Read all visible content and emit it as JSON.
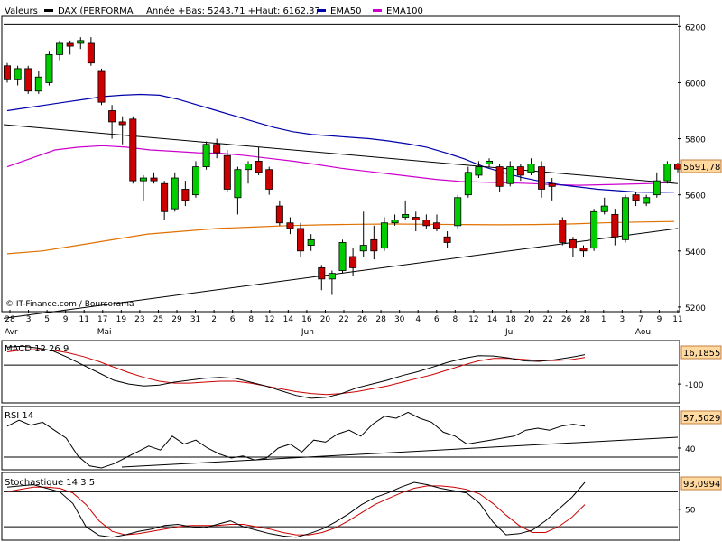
{
  "header": {
    "valeurs_label": "Valeurs",
    "instrument": "DAX (PERFORMA",
    "range_text": "Année +Bas: 5243,71 +Haut: 6162,37",
    "legend": [
      {
        "name": "EMA50",
        "color": "#0000aa"
      },
      {
        "name": "EMA100",
        "color": "#cc00cc"
      }
    ]
  },
  "watermark": "© IT-Finance.com / Boursorama",
  "colors": {
    "up_candle": "#00cc00",
    "down_candle": "#cc0000",
    "ema50": "#0000aa",
    "ema100": "#cc00cc",
    "ema200": "#e07000",
    "trendline": "#000000",
    "signal": "#cc0000",
    "lastvalue_box": "#ffd9a0"
  },
  "x_axis": {
    "day_labels": [
      "28",
      "3",
      "5",
      "9",
      "11",
      "17",
      "19",
      "23",
      "25",
      "29",
      "31",
      "2",
      "6",
      "8",
      "12",
      "14",
      "16",
      "20",
      "22",
      "26",
      "28",
      "30",
      "4",
      "6",
      "8",
      "12",
      "14",
      "18",
      "20",
      "22",
      "26",
      "28",
      "1",
      "3",
      "7",
      "9",
      "11"
    ],
    "month_labels": [
      "Avr",
      "Mai",
      "Jun",
      "Jul",
      "Aou"
    ]
  },
  "chart_data": [
    {
      "type": "candlestick",
      "name": "DAX (PERFORMA",
      "y_ticks": [
        6200,
        6000,
        5800,
        5600,
        5400,
        5200
      ],
      "ylim": [
        5190,
        6230
      ],
      "last_value": "5691,78",
      "candles": [
        {
          "o": 6060,
          "h": 6070,
          "l": 6000,
          "c": 6010
        },
        {
          "o": 6010,
          "h": 6060,
          "l": 5990,
          "c": 6050
        },
        {
          "o": 6050,
          "h": 6060,
          "l": 5960,
          "c": 5970
        },
        {
          "o": 5970,
          "h": 6040,
          "l": 5960,
          "c": 6020
        },
        {
          "o": 6000,
          "h": 6110,
          "l": 5990,
          "c": 6100
        },
        {
          "o": 6100,
          "h": 6150,
          "l": 6080,
          "c": 6140
        },
        {
          "o": 6140,
          "h": 6150,
          "l": 6100,
          "c": 6130
        },
        {
          "o": 6140,
          "h": 6162,
          "l": 6120,
          "c": 6150
        },
        {
          "o": 6140,
          "h": 6162,
          "l": 6060,
          "c": 6070
        },
        {
          "o": 6040,
          "h": 6050,
          "l": 5920,
          "c": 5930
        },
        {
          "o": 5900,
          "h": 5920,
          "l": 5800,
          "c": 5860
        },
        {
          "o": 5860,
          "h": 5880,
          "l": 5780,
          "c": 5850
        },
        {
          "o": 5870,
          "h": 5880,
          "l": 5640,
          "c": 5650
        },
        {
          "o": 5650,
          "h": 5670,
          "l": 5580,
          "c": 5660
        },
        {
          "o": 5660,
          "h": 5680,
          "l": 5640,
          "c": 5650
        },
        {
          "o": 5640,
          "h": 5650,
          "l": 5510,
          "c": 5540
        },
        {
          "o": 5550,
          "h": 5680,
          "l": 5540,
          "c": 5660
        },
        {
          "o": 5620,
          "h": 5650,
          "l": 5560,
          "c": 5580
        },
        {
          "o": 5600,
          "h": 5720,
          "l": 5590,
          "c": 5700
        },
        {
          "o": 5700,
          "h": 5790,
          "l": 5690,
          "c": 5780
        },
        {
          "o": 5780,
          "h": 5800,
          "l": 5730,
          "c": 5750
        },
        {
          "o": 5740,
          "h": 5760,
          "l": 5610,
          "c": 5620
        },
        {
          "o": 5590,
          "h": 5700,
          "l": 5530,
          "c": 5690
        },
        {
          "o": 5690,
          "h": 5720,
          "l": 5640,
          "c": 5710
        },
        {
          "o": 5720,
          "h": 5770,
          "l": 5670,
          "c": 5680
        },
        {
          "o": 5690,
          "h": 5700,
          "l": 5600,
          "c": 5620
        },
        {
          "o": 5560,
          "h": 5580,
          "l": 5490,
          "c": 5500
        },
        {
          "o": 5500,
          "h": 5520,
          "l": 5460,
          "c": 5480
        },
        {
          "o": 5480,
          "h": 5500,
          "l": 5380,
          "c": 5400
        },
        {
          "o": 5420,
          "h": 5460,
          "l": 5400,
          "c": 5440
        },
        {
          "o": 5340,
          "h": 5350,
          "l": 5260,
          "c": 5300
        },
        {
          "o": 5300,
          "h": 5330,
          "l": 5243,
          "c": 5320
        },
        {
          "o": 5330,
          "h": 5440,
          "l": 5320,
          "c": 5430
        },
        {
          "o": 5380,
          "h": 5410,
          "l": 5310,
          "c": 5340
        },
        {
          "o": 5400,
          "h": 5540,
          "l": 5380,
          "c": 5420
        },
        {
          "o": 5440,
          "h": 5490,
          "l": 5370,
          "c": 5400
        },
        {
          "o": 5410,
          "h": 5520,
          "l": 5400,
          "c": 5500
        },
        {
          "o": 5500,
          "h": 5530,
          "l": 5490,
          "c": 5510
        },
        {
          "o": 5520,
          "h": 5580,
          "l": 5510,
          "c": 5530
        },
        {
          "o": 5520,
          "h": 5540,
          "l": 5470,
          "c": 5510
        },
        {
          "o": 5510,
          "h": 5530,
          "l": 5480,
          "c": 5490
        },
        {
          "o": 5500,
          "h": 5530,
          "l": 5470,
          "c": 5480
        },
        {
          "o": 5450,
          "h": 5470,
          "l": 5410,
          "c": 5430
        },
        {
          "o": 5490,
          "h": 5600,
          "l": 5480,
          "c": 5590
        },
        {
          "o": 5600,
          "h": 5700,
          "l": 5590,
          "c": 5680
        },
        {
          "o": 5670,
          "h": 5720,
          "l": 5660,
          "c": 5700
        },
        {
          "o": 5710,
          "h": 5730,
          "l": 5700,
          "c": 5720
        },
        {
          "o": 5700,
          "h": 5710,
          "l": 5610,
          "c": 5630
        },
        {
          "o": 5640,
          "h": 5720,
          "l": 5630,
          "c": 5700
        },
        {
          "o": 5700,
          "h": 5710,
          "l": 5650,
          "c": 5670
        },
        {
          "o": 5680,
          "h": 5730,
          "l": 5670,
          "c": 5710
        },
        {
          "o": 5700,
          "h": 5720,
          "l": 5590,
          "c": 5620
        },
        {
          "o": 5640,
          "h": 5660,
          "l": 5580,
          "c": 5630
        },
        {
          "o": 5510,
          "h": 5520,
          "l": 5420,
          "c": 5430
        },
        {
          "o": 5440,
          "h": 5450,
          "l": 5380,
          "c": 5410
        },
        {
          "o": 5410,
          "h": 5420,
          "l": 5380,
          "c": 5400
        },
        {
          "o": 5410,
          "h": 5550,
          "l": 5400,
          "c": 5540
        },
        {
          "o": 5540,
          "h": 5590,
          "l": 5530,
          "c": 5560
        },
        {
          "o": 5530,
          "h": 5550,
          "l": 5420,
          "c": 5450
        },
        {
          "o": 5440,
          "h": 5600,
          "l": 5430,
          "c": 5590
        },
        {
          "o": 5600,
          "h": 5610,
          "l": 5560,
          "c": 5580
        },
        {
          "o": 5570,
          "h": 5600,
          "l": 5560,
          "c": 5590
        },
        {
          "o": 5600,
          "h": 5680,
          "l": 5590,
          "c": 5650
        },
        {
          "o": 5650,
          "h": 5720,
          "l": 5640,
          "c": 5710
        },
        {
          "o": 5710,
          "h": 5715,
          "l": 5680,
          "c": 5691.78
        }
      ],
      "ema50": [
        5900,
        5910,
        5920,
        5930,
        5940,
        5950,
        5955,
        5958,
        5955,
        5940,
        5920,
        5900,
        5880,
        5860,
        5840,
        5825,
        5815,
        5810,
        5805,
        5800,
        5792,
        5782,
        5770,
        5750,
        5728,
        5700,
        5680,
        5662,
        5648,
        5636,
        5628,
        5620,
        5615,
        5610,
        5609,
        5610
      ],
      "ema100": [
        5700,
        5730,
        5760,
        5770,
        5775,
        5770,
        5760,
        5755,
        5750,
        5748,
        5740,
        5730,
        5720,
        5708,
        5695,
        5685,
        5675,
        5665,
        5655,
        5648,
        5645,
        5643,
        5640,
        5636,
        5634,
        5636,
        5638,
        5640,
        5645
      ],
      "ema200": [
        5390,
        5400,
        5420,
        5440,
        5460,
        5470,
        5480,
        5485,
        5490,
        5493,
        5495,
        5496,
        5495,
        5494,
        5493,
        5494,
        5496,
        5500,
        5503,
        5505
      ],
      "trendlines": [
        {
          "from": [
            0,
            5850
          ],
          "to": [
            87,
            5640
          ]
        },
        {
          "from": [
            0,
            5160
          ],
          "to": [
            87,
            5480
          ]
        }
      ]
    },
    {
      "type": "line",
      "name": "MACD 12 26 9",
      "y_ticks": [
        -100
      ],
      "last_value": "16,1855",
      "macd": [
        95,
        100,
        90,
        75,
        40,
        0,
        -40,
        -80,
        -100,
        -110,
        -105,
        -90,
        -80,
        -70,
        -65,
        -70,
        -90,
        -110,
        -135,
        -160,
        -175,
        -170,
        -150,
        -120,
        -100,
        -80,
        -55,
        -35,
        -10,
        15,
        35,
        50,
        48,
        38,
        22,
        20,
        28,
        40,
        55
      ],
      "signal": [
        70,
        80,
        82,
        78,
        65,
        45,
        20,
        -10,
        -40,
        -65,
        -85,
        -95,
        -95,
        -90,
        -85,
        -85,
        -95,
        -110,
        -125,
        -140,
        -150,
        -155,
        -150,
        -140,
        -125,
        -110,
        -90,
        -70,
        -50,
        -25,
        0,
        22,
        35,
        35,
        30,
        24,
        24,
        28,
        40
      ],
      "ylim": [
        -190,
        120
      ]
    },
    {
      "type": "line",
      "name": "RSI 14",
      "y_ticks": [
        40
      ],
      "last_value": "57,5029",
      "rsi": [
        62,
        68,
        63,
        66,
        58,
        50,
        32,
        22,
        20,
        24,
        30,
        36,
        42,
        38,
        52,
        44,
        48,
        40,
        34,
        30,
        32,
        28,
        30,
        40,
        44,
        36,
        48,
        46,
        54,
        58,
        52,
        64,
        72,
        70,
        76,
        70,
        66,
        56,
        52,
        44,
        46,
        48,
        50,
        52,
        58,
        60,
        58,
        62,
        64,
        62
      ],
      "ylim": [
        20,
        80
      ]
    },
    {
      "type": "line",
      "name": "Stochastique 14 3 5",
      "y_ticks": [
        50
      ],
      "last_value": "93,0994",
      "k": [
        88,
        90,
        92,
        86,
        80,
        60,
        20,
        5,
        2,
        6,
        12,
        16,
        22,
        24,
        20,
        18,
        24,
        30,
        20,
        14,
        8,
        4,
        2,
        8,
        16,
        28,
        42,
        58,
        70,
        78,
        88,
        96,
        92,
        86,
        82,
        78,
        60,
        28,
        6,
        8,
        14,
        30,
        50,
        70,
        96
      ],
      "d": [
        80,
        84,
        88,
        88,
        86,
        78,
        58,
        30,
        12,
        6,
        8,
        12,
        16,
        20,
        22,
        22,
        22,
        24,
        24,
        20,
        16,
        10,
        6,
        6,
        10,
        18,
        30,
        44,
        58,
        68,
        78,
        86,
        90,
        90,
        88,
        84,
        76,
        60,
        40,
        22,
        10,
        10,
        20,
        36,
        58
      ],
      "ylim": [
        0,
        110
      ]
    }
  ]
}
